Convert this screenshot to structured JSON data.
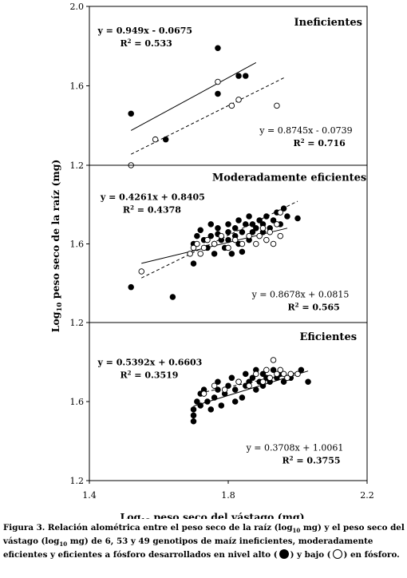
{
  "chart_data": {
    "type": "scatter",
    "ylabel": "Log",
    "ylabel_sub": "10",
    "ylabel_rest": " peso seco de la raíz (mg)",
    "xlabel": "Log",
    "xlabel_sub": "10",
    "xlabel_rest": " peso seco del vástago (mg)",
    "xlim": [
      1.4,
      2.2
    ],
    "ylim": [
      1.2,
      2.0
    ],
    "x_ticks": [
      "1.4",
      "1.8",
      "2.2"
    ],
    "y_ticks": [
      "1.2",
      "1.6",
      "2.0"
    ],
    "panels": [
      {
        "title": "Ineficientes",
        "eq_high": "y = 0.949x - 0.0675",
        "r2_high": "R",
        "r2_high_val": " = 0.533",
        "eq_low": "y = 0.8745x - 0.0739",
        "r2_low": "R",
        "r2_low_val": " = 0.716",
        "series": [
          {
            "marker": "filled",
            "fit": {
              "slope": 0.949,
              "intercept": -0.0675,
              "x_range": [
                1.52,
                1.88
              ]
            },
            "points": [
              [
                1.52,
                1.46
              ],
              [
                1.62,
                1.33
              ],
              [
                1.77,
                1.79
              ],
              [
                1.77,
                1.56
              ],
              [
                1.83,
                1.65
              ],
              [
                1.85,
                1.65
              ]
            ]
          },
          {
            "marker": "open",
            "fit": {
              "slope": 0.8745,
              "intercept": -0.0739,
              "x_range": [
                1.52,
                1.96
              ]
            },
            "points": [
              [
                1.52,
                1.2
              ],
              [
                1.59,
                1.33
              ],
              [
                1.77,
                1.62
              ],
              [
                1.81,
                1.5
              ],
              [
                1.83,
                1.53
              ],
              [
                1.94,
                1.5
              ]
            ]
          }
        ]
      },
      {
        "title": "Moderadamente eficientes",
        "eq_high": "y = 0.4261x + 0.8405",
        "r2_high": "R",
        "r2_high_val": " = 0.4378",
        "eq_low": "y = 0.8678x + 0.0815",
        "r2_low": "R",
        "r2_low_val": " = 0.565",
        "series": [
          {
            "marker": "filled",
            "fit": {
              "slope": 0.4261,
              "intercept": 0.8405,
              "x_range": [
                1.55,
                1.97
              ]
            },
            "points": [
              [
                1.52,
                1.38
              ],
              [
                1.64,
                1.33
              ],
              [
                1.7,
                1.5
              ],
              [
                1.7,
                1.6
              ],
              [
                1.71,
                1.64
              ],
              [
                1.72,
                1.67
              ],
              [
                1.73,
                1.62
              ],
              [
                1.74,
                1.58
              ],
              [
                1.75,
                1.64
              ],
              [
                1.75,
                1.7
              ],
              [
                1.76,
                1.55
              ],
              [
                1.76,
                1.6
              ],
              [
                1.77,
                1.65
              ],
              [
                1.77,
                1.68
              ],
              [
                1.78,
                1.62
              ],
              [
                1.79,
                1.58
              ],
              [
                1.8,
                1.62
              ],
              [
                1.8,
                1.66
              ],
              [
                1.8,
                1.7
              ],
              [
                1.81,
                1.55
              ],
              [
                1.82,
                1.64
              ],
              [
                1.82,
                1.68
              ],
              [
                1.83,
                1.6
              ],
              [
                1.83,
                1.72
              ],
              [
                1.84,
                1.56
              ],
              [
                1.84,
                1.66
              ],
              [
                1.85,
                1.7
              ],
              [
                1.86,
                1.62
              ],
              [
                1.86,
                1.74
              ],
              [
                1.87,
                1.66
              ],
              [
                1.87,
                1.7
              ],
              [
                1.88,
                1.68
              ],
              [
                1.89,
                1.72
              ],
              [
                1.9,
                1.66
              ],
              [
                1.9,
                1.7
              ],
              [
                1.91,
                1.74
              ],
              [
                1.92,
                1.68
              ],
              [
                1.93,
                1.72
              ],
              [
                1.94,
                1.76
              ],
              [
                1.95,
                1.7
              ],
              [
                1.96,
                1.78
              ],
              [
                1.97,
                1.74
              ],
              [
                2.0,
                1.73
              ]
            ]
          },
          {
            "marker": "open",
            "fit": {
              "slope": 0.8678,
              "intercept": 0.0815,
              "x_range": [
                1.55,
                2.0
              ]
            },
            "points": [
              [
                1.55,
                1.46
              ],
              [
                1.69,
                1.55
              ],
              [
                1.7,
                1.58
              ],
              [
                1.71,
                1.6
              ],
              [
                1.72,
                1.55
              ],
              [
                1.73,
                1.58
              ],
              [
                1.74,
                1.62
              ],
              [
                1.76,
                1.6
              ],
              [
                1.78,
                1.64
              ],
              [
                1.8,
                1.58
              ],
              [
                1.82,
                1.62
              ],
              [
                1.84,
                1.6
              ],
              [
                1.86,
                1.64
              ],
              [
                1.88,
                1.6
              ],
              [
                1.89,
                1.64
              ],
              [
                1.9,
                1.68
              ],
              [
                1.91,
                1.62
              ],
              [
                1.92,
                1.66
              ],
              [
                1.93,
                1.6
              ],
              [
                1.94,
                1.7
              ],
              [
                1.95,
                1.64
              ],
              [
                1.95,
                1.76
              ]
            ]
          }
        ]
      },
      {
        "title": "Eficientes",
        "eq_high": "y = 0.5392x + 0.6603",
        "r2_high": "R",
        "r2_high_val": " = 0.3519",
        "eq_low": "y = 0.3708x + 1.0061",
        "r2_low": "R",
        "r2_low_val": " = 0.3755",
        "series": [
          {
            "marker": "filled",
            "fit": {
              "slope": 0.5392,
              "intercept": 0.6603,
              "x_range": [
                1.7,
                2.03
              ]
            },
            "points": [
              [
                1.7,
                1.5
              ],
              [
                1.7,
                1.53
              ],
              [
                1.7,
                1.56
              ],
              [
                1.71,
                1.6
              ],
              [
                1.72,
                1.58
              ],
              [
                1.72,
                1.64
              ],
              [
                1.73,
                1.66
              ],
              [
                1.74,
                1.6
              ],
              [
                1.75,
                1.56
              ],
              [
                1.76,
                1.62
              ],
              [
                1.77,
                1.66
              ],
              [
                1.77,
                1.7
              ],
              [
                1.78,
                1.58
              ],
              [
                1.79,
                1.64
              ],
              [
                1.8,
                1.68
              ],
              [
                1.81,
                1.72
              ],
              [
                1.82,
                1.6
              ],
              [
                1.82,
                1.66
              ],
              [
                1.83,
                1.7
              ],
              [
                1.84,
                1.62
              ],
              [
                1.85,
                1.68
              ],
              [
                1.85,
                1.74
              ],
              [
                1.86,
                1.7
              ],
              [
                1.87,
                1.72
              ],
              [
                1.88,
                1.66
              ],
              [
                1.88,
                1.76
              ],
              [
                1.89,
                1.7
              ],
              [
                1.9,
                1.68
              ],
              [
                1.9,
                1.74
              ],
              [
                1.91,
                1.72
              ],
              [
                1.92,
                1.7
              ],
              [
                1.93,
                1.76
              ],
              [
                1.94,
                1.72
              ],
              [
                1.95,
                1.74
              ],
              [
                1.96,
                1.7
              ],
              [
                1.98,
                1.72
              ],
              [
                2.01,
                1.76
              ],
              [
                2.03,
                1.7
              ]
            ]
          },
          {
            "marker": "open",
            "fit": {
              "slope": 0.3708,
              "intercept": 1.0061,
              "x_range": [
                1.72,
                2.0
              ]
            },
            "points": [
              [
                1.73,
                1.64
              ],
              [
                1.76,
                1.68
              ],
              [
                1.79,
                1.66
              ],
              [
                1.83,
                1.7
              ],
              [
                1.86,
                1.68
              ],
              [
                1.88,
                1.74
              ],
              [
                1.9,
                1.7
              ],
              [
                1.91,
                1.76
              ],
              [
                1.92,
                1.72
              ],
              [
                1.93,
                1.81
              ],
              [
                1.94,
                1.74
              ],
              [
                1.95,
                1.76
              ],
              [
                1.96,
                1.74
              ],
              [
                1.97,
                1.72
              ],
              [
                1.98,
                1.74
              ],
              [
                2.0,
                1.74
              ]
            ]
          }
        ]
      }
    ]
  },
  "caption": {
    "p1": "Figura 3. Relación alométrica entre el peso seco de la raíz (log",
    "s1": "10",
    "p2": " mg) y el peso seco del vástago (log",
    "s2": "10",
    "p3": " mg) de 6, 53 y 49 genotipos de maíz ineficientes, moderadamente eficientes y eficientes a fósforo desarrollados en nivel alto (",
    "p4": ") y bajo (",
    "p5": ") en fósforo."
  }
}
